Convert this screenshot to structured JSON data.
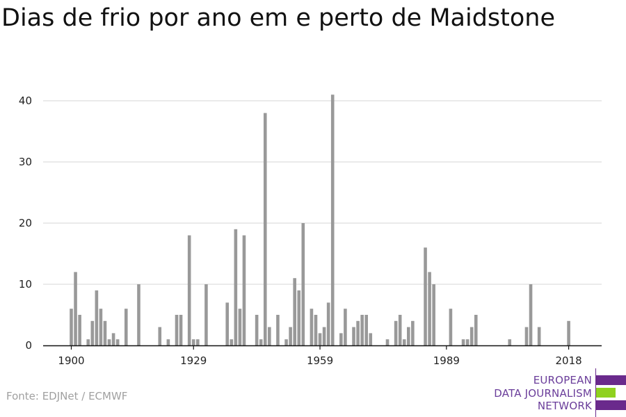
{
  "title": "Dias de frio por ano em e perto de Maidstone",
  "source": "Fonte: EDJNet / ECMWF",
  "logo": {
    "lines": [
      "EUROPEAN",
      "DATA JOURNALISM",
      "NETWORK"
    ],
    "colors": {
      "purple": "#6a2a8c",
      "green": "#8fd11f",
      "text": "#6a3d9a"
    }
  },
  "colors": {
    "bar": "#999999",
    "grid": "#dddddd",
    "axis": "#111111"
  },
  "chart_data": {
    "type": "bar",
    "title": "Dias de frio por ano em e perto de Maidstone",
    "xlabel": "",
    "ylabel": "",
    "ylim": [
      0,
      45
    ],
    "xlim": [
      1900,
      2022
    ],
    "yticks": [
      0,
      10,
      20,
      30,
      40
    ],
    "xticks": [
      1900,
      1929,
      1959,
      1989,
      2018
    ],
    "grid": true,
    "x": [
      1900,
      1901,
      1902,
      1903,
      1904,
      1905,
      1906,
      1907,
      1908,
      1909,
      1910,
      1911,
      1912,
      1913,
      1914,
      1915,
      1916,
      1917,
      1918,
      1919,
      1920,
      1921,
      1922,
      1923,
      1924,
      1925,
      1926,
      1927,
      1928,
      1929,
      1930,
      1931,
      1932,
      1933,
      1934,
      1935,
      1936,
      1937,
      1938,
      1939,
      1940,
      1941,
      1942,
      1943,
      1944,
      1945,
      1946,
      1947,
      1948,
      1949,
      1950,
      1951,
      1952,
      1953,
      1954,
      1955,
      1956,
      1957,
      1958,
      1959,
      1960,
      1961,
      1962,
      1963,
      1964,
      1965,
      1966,
      1967,
      1968,
      1969,
      1970,
      1971,
      1972,
      1973,
      1974,
      1975,
      1976,
      1977,
      1978,
      1979,
      1980,
      1981,
      1982,
      1983,
      1984,
      1985,
      1986,
      1987,
      1988,
      1989,
      1990,
      1991,
      1992,
      1993,
      1994,
      1995,
      1996,
      1997,
      1998,
      1999,
      2000,
      2001,
      2002,
      2003,
      2004,
      2005,
      2006,
      2007,
      2008,
      2009,
      2010,
      2011,
      2012,
      2013,
      2014,
      2015,
      2016,
      2017,
      2018,
      2019,
      2020,
      2021
    ],
    "values": [
      6,
      12,
      5,
      0,
      1,
      4,
      9,
      6,
      4,
      1,
      2,
      1,
      0,
      6,
      0,
      0,
      10,
      0,
      0,
      0,
      0,
      3,
      0,
      1,
      0,
      5,
      5,
      0,
      18,
      1,
      1,
      0,
      10,
      0,
      0,
      0,
      0,
      7,
      1,
      19,
      6,
      18,
      0,
      0,
      5,
      1,
      38,
      3,
      0,
      5,
      0,
      1,
      3,
      11,
      9,
      20,
      0,
      6,
      5,
      2,
      3,
      7,
      41,
      0,
      2,
      6,
      0,
      3,
      4,
      5,
      5,
      2,
      0,
      0,
      0,
      1,
      0,
      4,
      5,
      1,
      3,
      4,
      0,
      0,
      16,
      12,
      10,
      0,
      0,
      0,
      6,
      0,
      0,
      1,
      1,
      3,
      5,
      0,
      0,
      0,
      0,
      0,
      0,
      0,
      1,
      0,
      0,
      0,
      3,
      10,
      0,
      3,
      0,
      0,
      0,
      0,
      0,
      0,
      4,
      0,
      0,
      0
    ]
  }
}
